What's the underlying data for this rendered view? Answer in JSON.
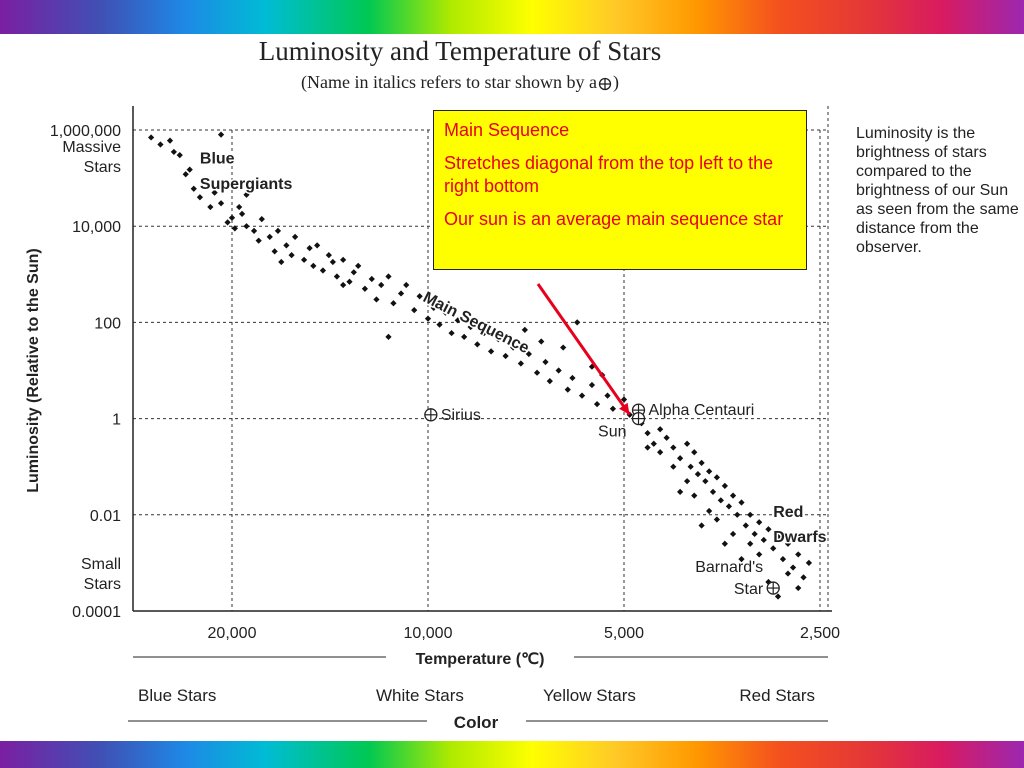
{
  "chart_data": {
    "type": "scatter",
    "title": "Luminosity and Temperature of Stars",
    "subtitle": "(Name in italics refers to star shown by a",
    "subtitle_close": ")",
    "ylabel": "Luminosity (Relative to the Sun)",
    "xlabel": "Temperature (℃)",
    "color_label": "Color",
    "y_scale": "log",
    "x_scale": "reversed",
    "ylim": [
      0.0001,
      1000000
    ],
    "xlim": [
      25000,
      2500
    ],
    "grid": true,
    "y_ticks": [
      {
        "value": 1000000,
        "label": "1,000,000"
      },
      {
        "value": 10000,
        "label": "10,000"
      },
      {
        "value": 100,
        "label": "100"
      },
      {
        "value": 1,
        "label": "1"
      },
      {
        "value": 0.01,
        "label": "0.01"
      },
      {
        "value": 0.0001,
        "label": "0.0001"
      }
    ],
    "y_extra_labels": [
      {
        "value": 1000000,
        "lines": [
          "Massive",
          "Stars"
        ]
      },
      {
        "value": 0.0001,
        "lines": [
          "Small",
          "Stars"
        ]
      }
    ],
    "x_ticks": [
      {
        "value": 20000,
        "label": "20,000"
      },
      {
        "value": 10000,
        "label": "10,000"
      },
      {
        "value": 5000,
        "label": "5,000"
      },
      {
        "value": 2500,
        "label": "2,500"
      }
    ],
    "color_bands": [
      {
        "label": "Blue Stars",
        "align": "left"
      },
      {
        "label": "White Stars",
        "align": "left"
      },
      {
        "label": "Yellow Stars",
        "align": "left"
      },
      {
        "label": "Red Stars",
        "align": "right"
      }
    ],
    "region_labels": [
      {
        "text": "Blue",
        "temperature": 21500,
        "luminosity": 200000
      },
      {
        "text": "Supergiants",
        "temperature": 21500,
        "luminosity": 60000
      },
      {
        "text": "Main Sequence",
        "temperature": 8500,
        "luminosity": 80,
        "rotate": 27
      },
      {
        "text": "Red",
        "temperature": 2950,
        "luminosity": 0.009
      },
      {
        "text": "Dwarfs",
        "temperature": 2950,
        "luminosity": 0.0027
      }
    ],
    "named_stars": [
      {
        "name": "Sirius",
        "temperature": 9900,
        "luminosity": 1.2,
        "label_side": "right"
      },
      {
        "name": "Alpha Centauri",
        "temperature": 4750,
        "luminosity": 1.5,
        "label_side": "right"
      },
      {
        "name": "Sun",
        "temperature": 4750,
        "luminosity": 1,
        "label_side": "left"
      },
      {
        "name": "Barnard's",
        "name_line2": "Star",
        "temperature": 2950,
        "luminosity": 0.0003,
        "label_side": "left"
      }
    ],
    "series": [
      {
        "points": [
          [
            24000,
            700000
          ],
          [
            23500,
            500000
          ],
          [
            23000,
            600000
          ],
          [
            22800,
            350000
          ],
          [
            22500,
            300000
          ],
          [
            22200,
            120000
          ],
          [
            21800,
            60000
          ],
          [
            21500,
            40000
          ],
          [
            21000,
            25000
          ],
          [
            20800,
            50000
          ],
          [
            20500,
            30000
          ],
          [
            20200,
            12000
          ],
          [
            20000,
            15000
          ],
          [
            19800,
            9000
          ],
          [
            19500,
            25000
          ],
          [
            19300,
            18000
          ],
          [
            19000,
            10000
          ],
          [
            18500,
            8000
          ],
          [
            18200,
            5000
          ],
          [
            18000,
            14000
          ],
          [
            17500,
            6000
          ],
          [
            17200,
            3000
          ],
          [
            17000,
            8000
          ],
          [
            16500,
            4000
          ],
          [
            16200,
            2500
          ],
          [
            16000,
            6000
          ],
          [
            15500,
            2000
          ],
          [
            15200,
            3500
          ],
          [
            15000,
            1500
          ],
          [
            14800,
            4000
          ],
          [
            14500,
            1200
          ],
          [
            14200,
            2500
          ],
          [
            14000,
            1800
          ],
          [
            13800,
            900
          ],
          [
            13500,
            2000
          ],
          [
            13200,
            700
          ],
          [
            13000,
            1100
          ],
          [
            12800,
            1500
          ],
          [
            12500,
            500
          ],
          [
            12200,
            800
          ],
          [
            12000,
            300
          ],
          [
            11800,
            600
          ],
          [
            11500,
            900
          ],
          [
            11300,
            250
          ],
          [
            11000,
            400
          ],
          [
            10800,
            600
          ],
          [
            10500,
            180
          ],
          [
            10300,
            350
          ],
          [
            10000,
            120
          ],
          [
            9800,
            200
          ],
          [
            9600,
            90
          ],
          [
            9400,
            160
          ],
          [
            9200,
            60
          ],
          [
            9000,
            110
          ],
          [
            8800,
            50
          ],
          [
            8600,
            80
          ],
          [
            8400,
            35
          ],
          [
            8200,
            60
          ],
          [
            8000,
            25
          ],
          [
            7800,
            45
          ],
          [
            7600,
            20
          ],
          [
            7400,
            30
          ],
          [
            7200,
            14
          ],
          [
            7000,
            22
          ],
          [
            6800,
            9
          ],
          [
            6600,
            15
          ],
          [
            6500,
            6
          ],
          [
            6300,
            10
          ],
          [
            6100,
            4
          ],
          [
            6000,
            7
          ],
          [
            5800,
            3
          ],
          [
            5600,
            5
          ],
          [
            5500,
            2
          ],
          [
            5300,
            3
          ],
          [
            5200,
            1.6
          ],
          [
            5000,
            2.5
          ],
          [
            4900,
            1.2
          ],
          [
            4700,
            0.8
          ],
          [
            4600,
            0.5
          ],
          [
            4500,
            0.3
          ],
          [
            4400,
            0.6
          ],
          [
            4300,
            0.4
          ],
          [
            4200,
            0.25
          ],
          [
            4100,
            0.15
          ],
          [
            4000,
            0.3
          ],
          [
            3950,
            0.1
          ],
          [
            3900,
            0.2
          ],
          [
            3850,
            0.07
          ],
          [
            3800,
            0.12
          ],
          [
            3750,
            0.05
          ],
          [
            3700,
            0.08
          ],
          [
            3650,
            0.03
          ],
          [
            3600,
            0.06
          ],
          [
            3550,
            0.02
          ],
          [
            3500,
            0.04
          ],
          [
            3450,
            0.015
          ],
          [
            3400,
            0.025
          ],
          [
            3350,
            0.01
          ],
          [
            3300,
            0.018
          ],
          [
            3250,
            0.006
          ],
          [
            3200,
            0.01
          ],
          [
            3150,
            0.004
          ],
          [
            3100,
            0.007
          ],
          [
            3050,
            0.003
          ],
          [
            3000,
            0.005
          ],
          [
            2950,
            0.002
          ],
          [
            2900,
            0.0035
          ],
          [
            2850,
            0.0012
          ],
          [
            2800,
            0.0025
          ],
          [
            2750,
            0.0008
          ],
          [
            2700,
            0.0015
          ],
          [
            2650,
            0.0005
          ],
          [
            2600,
            0.001
          ],
          [
            2700,
            0.0003
          ],
          [
            2800,
            0.0006
          ],
          [
            2900,
            0.0002
          ],
          [
            3000,
            0.0004
          ],
          [
            3100,
            0.0015
          ],
          [
            3200,
            0.0025
          ],
          [
            3300,
            0.0012
          ],
          [
            3400,
            0.004
          ],
          [
            3500,
            0.0025
          ],
          [
            3600,
            0.008
          ],
          [
            3700,
            0.012
          ],
          [
            3800,
            0.006
          ],
          [
            3900,
            0.025
          ],
          [
            4000,
            0.05
          ],
          [
            4100,
            0.03
          ],
          [
            4200,
            0.1
          ],
          [
            4400,
            0.2
          ],
          [
            4600,
            0.25
          ],
          [
            5400,
            8
          ],
          [
            5600,
            12
          ],
          [
            6200,
            30
          ],
          [
            6700,
            40
          ],
          [
            7100,
            70
          ],
          [
            5900,
            100
          ],
          [
            11500,
            50
          ],
          [
            13500,
            600
          ],
          [
            16800,
            1800
          ],
          [
            20500,
            800000
          ],
          [
            22000,
            150000
          ],
          [
            19000,
            45000
          ]
        ]
      }
    ]
  },
  "callout": {
    "line1": "Main Sequence",
    "line2": "Stretches diagonal from the top left to the right bottom",
    "line3": "Our sun is an average main sequence star",
    "arrow_color": "#e8001c",
    "background": "#ffff00"
  },
  "side_note": "Luminosity is the brightness of stars compared to the brightness of our Sun as seen from the same distance from the observer."
}
